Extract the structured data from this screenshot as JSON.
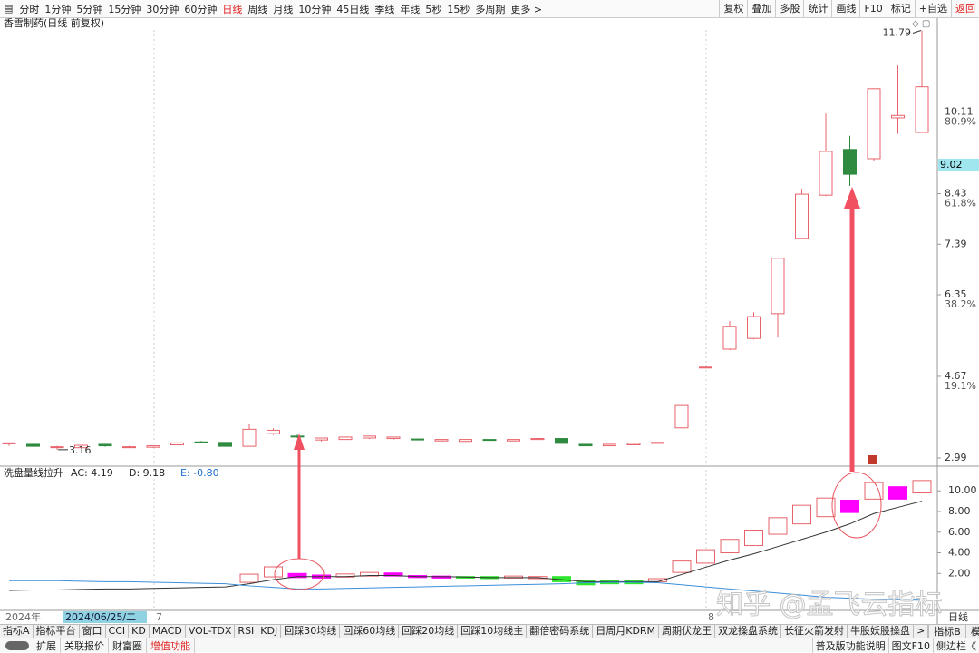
{
  "toolbar": {
    "periods": [
      "分时",
      "1分钟",
      "5分钟",
      "15分钟",
      "30分钟",
      "60分钟",
      "日线",
      "周线",
      "月线",
      "10分钟",
      "45日线",
      "季线",
      "年线",
      "5秒",
      "15秒",
      "多周期",
      "更多 >"
    ],
    "tools": [
      "复权",
      "叠加",
      "多股",
      "统计",
      "画线",
      "F10",
      "标记",
      "+自选",
      "返回"
    ]
  },
  "chart_data": [
    {
      "type": "candlestick",
      "title": "香雪制药(日线 前复权)",
      "open": [
        3.28,
        3.27,
        3.22,
        3.2,
        3.27,
        3.22,
        3.21,
        3.26,
        3.32,
        3.31,
        3.23,
        3.49,
        3.44,
        3.36,
        3.37,
        3.4,
        3.39,
        3.38,
        3.34,
        3.33,
        3.37,
        3.34,
        3.37,
        3.39,
        3.27,
        3.24,
        3.26,
        3.29,
        3.61,
        4.86,
        5.23,
        5.45,
        5.96,
        7.51,
        8.4,
        9.34,
        9.15,
        9.99,
        9.69
      ],
      "high": [
        3.3,
        3.28,
        3.24,
        3.26,
        3.28,
        3.24,
        3.25,
        3.31,
        3.34,
        3.31,
        3.68,
        3.6,
        3.47,
        3.4,
        3.42,
        3.45,
        3.43,
        3.39,
        3.38,
        3.38,
        3.38,
        3.37,
        3.4,
        3.39,
        3.28,
        3.28,
        3.3,
        3.31,
        4.07,
        4.86,
        5.81,
        5.99,
        7.1,
        8.53,
        10.08,
        9.62,
        10.59,
        11.07,
        11.79
      ],
      "low": [
        3.24,
        3.22,
        3.16,
        3.19,
        3.22,
        3.2,
        3.2,
        3.25,
        3.3,
        3.22,
        3.22,
        3.46,
        3.4,
        3.33,
        3.36,
        3.38,
        3.36,
        3.35,
        3.33,
        3.32,
        3.34,
        3.33,
        3.36,
        3.28,
        3.23,
        3.23,
        3.25,
        3.28,
        3.6,
        4.86,
        5.21,
        5.43,
        5.47,
        7.5,
        8.38,
        8.59,
        9.1,
        9.66,
        9.69
      ],
      "close": [
        3.3,
        3.23,
        3.22,
        3.25,
        3.24,
        3.22,
        3.24,
        3.3,
        3.31,
        3.23,
        3.58,
        3.56,
        3.43,
        3.4,
        3.42,
        3.44,
        3.42,
        3.37,
        3.37,
        3.37,
        3.36,
        3.37,
        3.39,
        3.29,
        3.24,
        3.27,
        3.29,
        3.31,
        4.07,
        4.86,
        5.7,
        5.9,
        7.1,
        8.42,
        9.3,
        8.83,
        10.59,
        10.04,
        10.63
      ],
      "up_color": "#e8636b",
      "down_color": "#2e8b3f",
      "ylim": [
        2.84,
        11.8
      ],
      "yticks": [
        2.99,
        4.67,
        6.35,
        7.39,
        8.43,
        10.11
      ],
      "fib_levels": [
        {
          "value": 10.11,
          "label": "80.9%"
        },
        {
          "value": 8.43,
          "label": "61.8%"
        },
        {
          "value": 6.35,
          "label": "38.2%"
        },
        {
          "value": 4.67,
          "label": "19.1%"
        }
      ],
      "current_price": 9.02,
      "high_annotation": 11.79,
      "low_annotation": 3.16
    },
    {
      "type": "indicator",
      "title": "洗盘量线拉升",
      "stats": [
        "AC: 4.19",
        "D: 9.18",
        "E: -0.80"
      ],
      "ylim": [
        -1.49,
        12.13
      ],
      "yticks": [
        {
          "value": 2,
          "label": "2.00"
        },
        {
          "value": 4,
          "label": "4.00"
        },
        {
          "value": 6,
          "label": "6.00"
        },
        {
          "value": 8,
          "label": "8.00"
        },
        {
          "value": 10,
          "label": "10.00"
        }
      ],
      "box_low": [
        null,
        null,
        null,
        null,
        null,
        null,
        null,
        null,
        null,
        null,
        1.14,
        1.67,
        1.6,
        1.55,
        1.65,
        1.75,
        1.75,
        1.6,
        1.55,
        1.55,
        1.5,
        1.55,
        1.5,
        1.2,
        0.9,
        1.0,
        1.0,
        1.2,
        2.1,
        3.0,
        4.0,
        4.7,
        5.8,
        6.8,
        7.5,
        7.9,
        9.2,
        9.2,
        9.8
      ],
      "box_high": [
        null,
        null,
        null,
        null,
        null,
        null,
        null,
        null,
        null,
        null,
        1.93,
        2.64,
        2.0,
        1.85,
        1.95,
        2.1,
        2.05,
        1.8,
        1.75,
        1.7,
        1.7,
        1.75,
        1.7,
        1.7,
        1.3,
        1.3,
        1.3,
        1.5,
        3.2,
        4.3,
        5.3,
        6.2,
        7.4,
        8.6,
        9.3,
        9.1,
        10.8,
        10.4,
        11.0
      ],
      "box_color": [
        null,
        null,
        null,
        null,
        null,
        null,
        null,
        null,
        null,
        null,
        "#e8636b",
        "#e8636b",
        "#f0f",
        "#f0f",
        "#e8636b",
        "#e8636b",
        "#f0f",
        "#f0f",
        "#f0f",
        "#2ee62e",
        "#2ee62e",
        "#e8636b",
        "#e8636b",
        "#2ee62e",
        "#2ee62e",
        "#2ee62e",
        "#2ee62e",
        "#e8636b",
        "#e8636b",
        "#e8636b",
        "#e8636b",
        "#e8636b",
        "#e8636b",
        "#e8636b",
        "#e8636b",
        "#f0f",
        "#e8636b",
        "#f0f",
        "#e8636b"
      ],
      "box_filled": [
        null,
        null,
        null,
        null,
        null,
        null,
        null,
        null,
        null,
        null,
        false,
        false,
        true,
        true,
        false,
        false,
        true,
        true,
        true,
        true,
        true,
        false,
        false,
        true,
        true,
        true,
        true,
        false,
        false,
        false,
        false,
        false,
        false,
        false,
        false,
        true,
        false,
        true,
        false
      ],
      "lines": [
        {
          "color": "#333333",
          "values": [
            0.35,
            0.4,
            0.4,
            0.45,
            0.5,
            0.5,
            0.55,
            0.6,
            0.65,
            0.7,
            1.0,
            1.4,
            1.7,
            1.7,
            1.7,
            1.8,
            1.8,
            1.7,
            1.7,
            1.65,
            1.6,
            1.6,
            1.6,
            1.4,
            1.2,
            1.2,
            1.2,
            1.2,
            1.9,
            2.6,
            3.3,
            3.9,
            4.6,
            5.3,
            6.0,
            6.8,
            7.8,
            8.4,
            9.0
          ]
        },
        {
          "color": "#3a8fd8",
          "values": [
            1.3,
            1.3,
            1.3,
            1.25,
            1.2,
            1.2,
            1.15,
            1.1,
            1.05,
            1.0,
            0.8,
            0.65,
            0.5,
            0.5,
            0.55,
            0.6,
            0.65,
            0.7,
            0.75,
            0.8,
            0.85,
            0.9,
            0.95,
            1.0,
            1.1,
            1.15,
            1.15,
            1.1,
            0.9,
            0.7,
            0.5,
            0.3,
            0.1,
            -0.1,
            -0.3,
            -0.4,
            -0.5,
            -0.55,
            -0.6
          ]
        }
      ]
    }
  ],
  "x_labels": [
    "2024年",
    "2024/06/25/二",
    "7",
    "8",
    "日线"
  ],
  "tabs": {
    "left": [
      "指标A",
      "指标平台",
      "窗口",
      "CCI",
      "KD",
      "MACD",
      "VOL-TDX",
      "RSI",
      "KDJ",
      "回踩30均线",
      "回踩60均线",
      "回踩20均线",
      "回踩10均线主",
      "翻倍密码系统",
      "日周月KDRM",
      "周期伏龙王",
      "双龙操盘系统",
      "长征火箭发射",
      "牛股妖股操盘",
      ">"
    ],
    "right": [
      "指标B",
      "模板",
      "+",
      "-"
    ]
  },
  "status": {
    "left": [
      "扩展",
      "关联报价",
      "财富圈",
      "增值功能"
    ],
    "right": [
      "普及版功能说明",
      "图文F10",
      "侧边栏《"
    ]
  },
  "watermark": "知乎 @孟飞云指标"
}
